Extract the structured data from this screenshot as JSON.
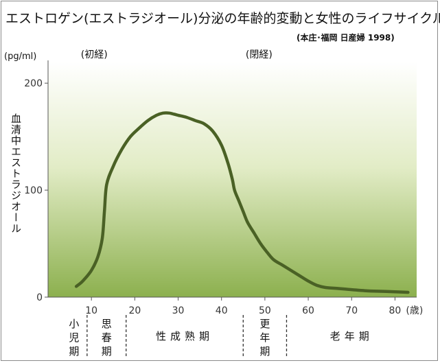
{
  "chart_data": {
    "type": "line",
    "title": "エストロゲン(エストラジオール)分泌の年齢的変動と女性のライフサイクル",
    "source": "(本庄･福岡 日産婦 1998)",
    "ylabel": "血清中エストラジオール",
    "yunit": "(pg/ml)",
    "xunit": "(歳)",
    "ylim": [
      0,
      220
    ],
    "xlim": [
      0,
      85
    ],
    "yticks": [
      "0",
      "100",
      "200"
    ],
    "xticks": [
      "10",
      "20",
      "30",
      "40",
      "50",
      "60",
      "70",
      "80"
    ],
    "grid": false,
    "series": [
      {
        "x": [
          6.5,
          8,
          10,
          11.5,
          12.5,
          13,
          13.5,
          15,
          17,
          19,
          21,
          23,
          25,
          26.5,
          28,
          30,
          32,
          34,
          36,
          38,
          40,
          41.5,
          42.5,
          43,
          44,
          45,
          46,
          47.5,
          49,
          50.5,
          52,
          54,
          56,
          58,
          60,
          62,
          64,
          67,
          70,
          73,
          76,
          80,
          83
        ],
        "y": [
          10,
          15,
          25,
          38,
          55,
          80,
          105,
          122,
          138,
          150,
          158,
          165,
          170,
          172,
          172,
          170,
          168,
          165,
          162,
          155,
          142,
          125,
          110,
          100,
          90,
          80,
          70,
          60,
          50,
          42,
          35,
          30,
          25,
          20,
          15,
          11,
          9,
          8,
          7,
          6,
          5.5,
          5,
          4.5
        ]
      }
    ],
    "annotations": [
      {
        "text": "(初経)",
        "x": 12
      },
      {
        "text": "(閉経)",
        "x": 50
      }
    ],
    "stages": [
      {
        "label": "小児期",
        "from": 0,
        "to": 9
      },
      {
        "label": "思春期",
        "from": 9,
        "to": 18
      },
      {
        "label": "性成熟期",
        "from": 18,
        "to": 45
      },
      {
        "label": "更年期",
        "from": 45,
        "to": 55
      },
      {
        "label": "老年期",
        "from": 55,
        "to": 85
      }
    ],
    "colors": {
      "line": "#4a6125",
      "bg_top": "#ffffff",
      "bg_bottom": "#8cb04e"
    }
  }
}
